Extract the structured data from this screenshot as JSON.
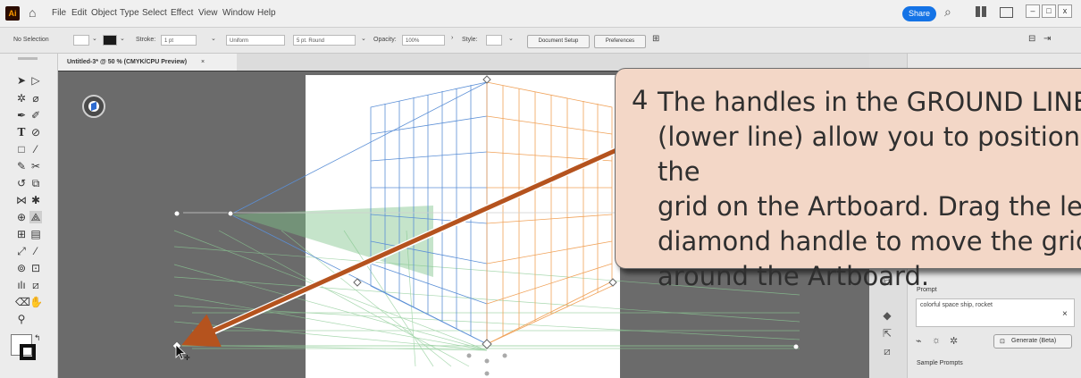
{
  "app": {
    "logo_text": "Ai"
  },
  "menu": {
    "items": [
      "File",
      "Edit",
      "Object",
      "Type",
      "Select",
      "Effect",
      "View",
      "Window",
      "Help"
    ]
  },
  "header": {
    "share_label": "Share",
    "window_buttons": [
      "–",
      "□",
      "x"
    ]
  },
  "control_bar": {
    "selection": "No Selection",
    "stroke_label": "Stroke:",
    "stroke_value": "1 pt",
    "profile": "Uniform",
    "brush": "5 pt. Round",
    "opacity_label": "Opacity:",
    "opacity_value": "100%",
    "style_label": "Style:",
    "doc_setup_label": "Document Setup",
    "preferences_label": "Preferences"
  },
  "document": {
    "tab_title": "Untitled-3* @ 50 % (CMYK/CPU Preview)",
    "tab_close": "×"
  },
  "panel": {
    "prompt_label": "Prompt",
    "prompt_value": "colorful space ship, rocket",
    "clear_icon": "×",
    "generate_label": "Generate (Beta)",
    "sample_label": "Sample Prompts"
  },
  "callout": {
    "number": "4",
    "text": "The handles in the GROUND LINE\n(lower line) allow you to position the\ngrid on the Artboard.  Drag the left\ndiamond handle to move the grid\naround the Artboard."
  },
  "colors": {
    "accent": "#1473e6",
    "callout_bg": "#f3d7c7",
    "arrow": "#b5531e",
    "grid_blue": "#5b8fd6",
    "grid_orange": "#f0a259",
    "grid_green": "#7fc48a"
  },
  "icons": [
    "selection-tool-icon",
    "direct-selection-icon",
    "pen-icon",
    "type-icon",
    "rectangle-icon",
    "paintbrush-icon",
    "rotate-icon",
    "scale-icon",
    "graph-icon",
    "hand-icon",
    "zoom-icon",
    "perspective-grid-icon"
  ]
}
